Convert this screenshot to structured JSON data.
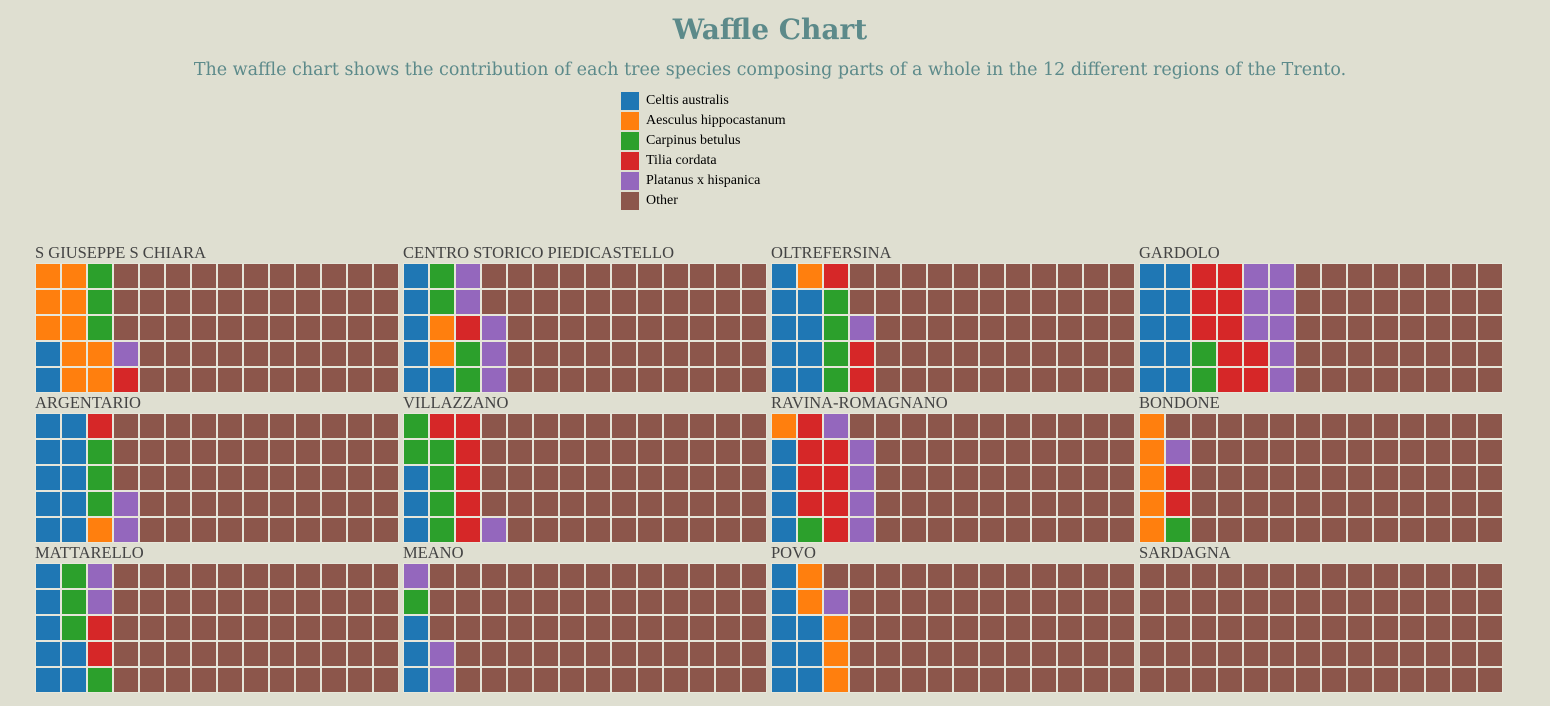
{
  "title": "Waffle Chart",
  "subtitle": "The waffle chart shows the contribution of each tree species composing parts of a whole in the 12 different regions of the Trento.",
  "colors": {
    "background": "#dfdfd1",
    "heading": "#5c8a8a",
    "cell_border": "#e6e6da"
  },
  "legend": [
    {
      "label": "Celtis australis",
      "color": "#1f77b4"
    },
    {
      "label": "Aesculus hippocastanum",
      "color": "#ff7f0e"
    },
    {
      "label": "Carpinus betulus",
      "color": "#2ca02c"
    },
    {
      "label": "Tilia cordata",
      "color": "#d62728"
    },
    {
      "label": "Platanus x hispanica",
      "color": "#9467bd"
    },
    {
      "label": "Other",
      "color": "#8c564b"
    }
  ],
  "chart_data": {
    "type": "waffle",
    "grid": {
      "rows": 5,
      "columns": 14,
      "cells_per_panel": 70
    },
    "legend_placement": "top-center",
    "categories": [
      "Celtis australis",
      "Aesculus hippocastanum",
      "Carpinus betulus",
      "Tilia cordata",
      "Platanus x hispanica",
      "Other"
    ],
    "panels": [
      {
        "region": "S GIUSEPPE S CHIARA",
        "columns": [
          [
            "Aesculus hippocastanum",
            "Aesculus hippocastanum",
            "Aesculus hippocastanum",
            "Celtis australis",
            "Celtis australis"
          ],
          [
            "Aesculus hippocastanum",
            "Aesculus hippocastanum",
            "Aesculus hippocastanum",
            "Aesculus hippocastanum",
            "Aesculus hippocastanum"
          ],
          [
            "Carpinus betulus",
            "Carpinus betulus",
            "Carpinus betulus",
            "Aesculus hippocastanum",
            "Aesculus hippocastanum"
          ],
          [
            "Other",
            "Other",
            "Other",
            "Platanus x hispanica",
            "Tilia cordata"
          ]
        ]
      },
      {
        "region": "CENTRO STORICO PIEDICASTELLO",
        "columns": [
          [
            "Celtis australis",
            "Celtis australis",
            "Celtis australis",
            "Celtis australis",
            "Celtis australis"
          ],
          [
            "Carpinus betulus",
            "Carpinus betulus",
            "Aesculus hippocastanum",
            "Aesculus hippocastanum",
            "Celtis australis"
          ],
          [
            "Platanus x hispanica",
            "Platanus x hispanica",
            "Tilia cordata",
            "Carpinus betulus",
            "Carpinus betulus"
          ],
          [
            "Other",
            "Other",
            "Platanus x hispanica",
            "Platanus x hispanica",
            "Platanus x hispanica"
          ]
        ]
      },
      {
        "region": "OLTREFERSINA",
        "columns": [
          [
            "Celtis australis",
            "Celtis australis",
            "Celtis australis",
            "Celtis australis",
            "Celtis australis"
          ],
          [
            "Aesculus hippocastanum",
            "Celtis australis",
            "Celtis australis",
            "Celtis australis",
            "Celtis australis"
          ],
          [
            "Tilia cordata",
            "Carpinus betulus",
            "Carpinus betulus",
            "Carpinus betulus",
            "Carpinus betulus"
          ],
          [
            "Other",
            "Other",
            "Platanus x hispanica",
            "Tilia cordata",
            "Tilia cordata"
          ]
        ]
      },
      {
        "region": "GARDOLO",
        "columns": [
          [
            "Celtis australis",
            "Celtis australis",
            "Celtis australis",
            "Celtis australis",
            "Celtis australis"
          ],
          [
            "Celtis australis",
            "Celtis australis",
            "Celtis australis",
            "Celtis australis",
            "Celtis australis"
          ],
          [
            "Tilia cordata",
            "Tilia cordata",
            "Tilia cordata",
            "Carpinus betulus",
            "Carpinus betulus"
          ],
          [
            "Tilia cordata",
            "Tilia cordata",
            "Tilia cordata",
            "Tilia cordata",
            "Tilia cordata"
          ],
          [
            "Platanus x hispanica",
            "Platanus x hispanica",
            "Platanus x hispanica",
            "Tilia cordata",
            "Tilia cordata"
          ],
          [
            "Platanus x hispanica",
            "Platanus x hispanica",
            "Platanus x hispanica",
            "Platanus x hispanica",
            "Platanus x hispanica"
          ]
        ]
      },
      {
        "region": "ARGENTARIO",
        "columns": [
          [
            "Celtis australis",
            "Celtis australis",
            "Celtis australis",
            "Celtis australis",
            "Celtis australis"
          ],
          [
            "Celtis australis",
            "Celtis australis",
            "Celtis australis",
            "Celtis australis",
            "Celtis australis"
          ],
          [
            "Tilia cordata",
            "Carpinus betulus",
            "Carpinus betulus",
            "Carpinus betulus",
            "Aesculus hippocastanum"
          ],
          [
            "Other",
            "Other",
            "Other",
            "Platanus x hispanica",
            "Platanus x hispanica"
          ]
        ]
      },
      {
        "region": "VILLAZZANO",
        "columns": [
          [
            "Carpinus betulus",
            "Carpinus betulus",
            "Celtis australis",
            "Celtis australis",
            "Celtis australis"
          ],
          [
            "Tilia cordata",
            "Carpinus betulus",
            "Carpinus betulus",
            "Carpinus betulus",
            "Carpinus betulus"
          ],
          [
            "Tilia cordata",
            "Tilia cordata",
            "Tilia cordata",
            "Tilia cordata",
            "Tilia cordata"
          ],
          [
            "Other",
            "Other",
            "Other",
            "Other",
            "Platanus x hispanica"
          ]
        ]
      },
      {
        "region": "RAVINA-ROMAGNANO",
        "columns": [
          [
            "Aesculus hippocastanum",
            "Celtis australis",
            "Celtis australis",
            "Celtis australis",
            "Celtis australis"
          ],
          [
            "Tilia cordata",
            "Tilia cordata",
            "Tilia cordata",
            "Tilia cordata",
            "Carpinus betulus"
          ],
          [
            "Platanus x hispanica",
            "Tilia cordata",
            "Tilia cordata",
            "Tilia cordata",
            "Tilia cordata"
          ],
          [
            "Other",
            "Platanus x hispanica",
            "Platanus x hispanica",
            "Platanus x hispanica",
            "Platanus x hispanica"
          ]
        ]
      },
      {
        "region": "BONDONE",
        "columns": [
          [
            "Aesculus hippocastanum",
            "Aesculus hippocastanum",
            "Aesculus hippocastanum",
            "Aesculus hippocastanum",
            "Aesculus hippocastanum"
          ],
          [
            "Other",
            "Platanus x hispanica",
            "Tilia cordata",
            "Tilia cordata",
            "Carpinus betulus"
          ]
        ]
      },
      {
        "region": "MATTARELLO",
        "columns": [
          [
            "Celtis australis",
            "Celtis australis",
            "Celtis australis",
            "Celtis australis",
            "Celtis australis"
          ],
          [
            "Carpinus betulus",
            "Carpinus betulus",
            "Carpinus betulus",
            "Celtis australis",
            "Celtis australis"
          ],
          [
            "Platanus x hispanica",
            "Platanus x hispanica",
            "Tilia cordata",
            "Tilia cordata",
            "Carpinus betulus"
          ]
        ]
      },
      {
        "region": "MEANO",
        "columns": [
          [
            "Platanus x hispanica",
            "Carpinus betulus",
            "Celtis australis",
            "Celtis australis",
            "Celtis australis"
          ],
          [
            "Other",
            "Other",
            "Other",
            "Platanus x hispanica",
            "Platanus x hispanica"
          ]
        ]
      },
      {
        "region": "POVO",
        "columns": [
          [
            "Celtis australis",
            "Celtis australis",
            "Celtis australis",
            "Celtis australis",
            "Celtis australis"
          ],
          [
            "Aesculus hippocastanum",
            "Aesculus hippocastanum",
            "Celtis australis",
            "Celtis australis",
            "Celtis australis"
          ],
          [
            "Other",
            "Platanus x hispanica",
            "Aesculus hippocastanum",
            "Aesculus hippocastanum",
            "Aesculus hippocastanum"
          ]
        ]
      },
      {
        "region": "SARDAGNA",
        "columns": []
      }
    ]
  }
}
